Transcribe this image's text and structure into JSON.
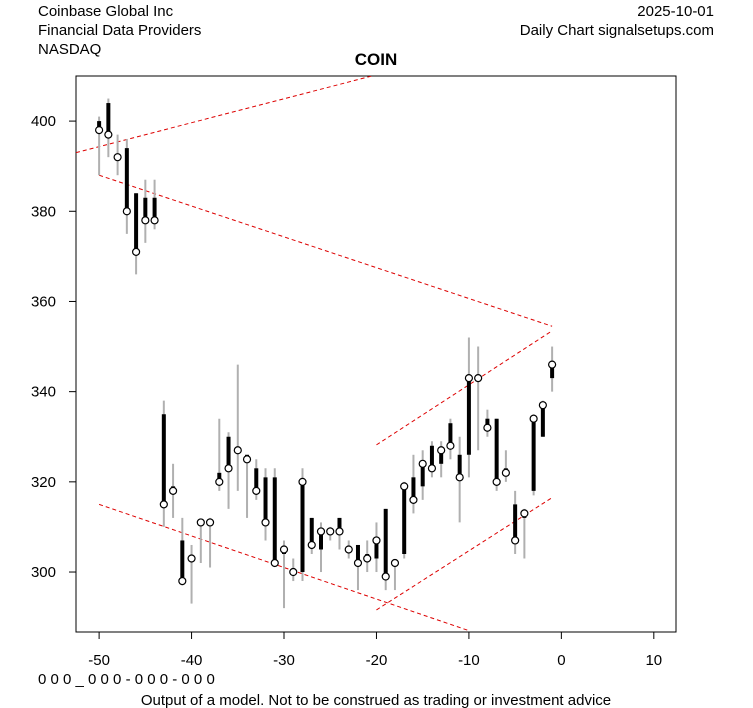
{
  "header": {
    "company": "Coinbase Global Inc",
    "sector": "Financial Data Providers",
    "exchange": "NASDAQ",
    "date": "2025-10-01",
    "source": "Daily Chart signalsetups.com"
  },
  "chart_data": {
    "type": "ohlc",
    "title": "COIN",
    "x": [
      -50,
      -49,
      -48,
      -47,
      -46,
      -45,
      -44,
      -43,
      -42,
      -41,
      -40,
      -39,
      -38,
      -37,
      -36,
      -35,
      -34,
      -33,
      -32,
      -31,
      -30,
      -29,
      -28,
      -27,
      -26,
      -25,
      -24,
      -23,
      -22,
      -21,
      -20,
      -19,
      -18,
      -17,
      -16,
      -15,
      -14,
      -13,
      -12,
      -11,
      -10,
      -9,
      -8,
      -7,
      -6,
      -5,
      -4,
      -3,
      -2,
      -1
    ],
    "open": [
      400,
      404,
      392,
      394,
      384,
      383,
      383,
      335,
      319,
      307,
      303,
      311,
      311,
      322,
      330,
      327,
      326,
      323,
      321,
      321,
      304,
      300,
      300,
      312,
      305,
      309,
      312,
      305,
      306,
      304,
      303,
      314,
      302,
      304,
      321,
      319,
      328,
      324,
      333,
      326,
      326,
      343,
      334,
      334,
      323,
      315,
      312,
      318,
      330,
      343
    ],
    "high": [
      401,
      405,
      397,
      396,
      384,
      387,
      387,
      338,
      324,
      312,
      306,
      311,
      312,
      334,
      331,
      346,
      326,
      325,
      323,
      323,
      307,
      303,
      323,
      312,
      311,
      310,
      312,
      307,
      306,
      307,
      311,
      314,
      302,
      320,
      326,
      327,
      329,
      329,
      334,
      330,
      352,
      350,
      336,
      334,
      327,
      318,
      314,
      335,
      338,
      350
    ],
    "low": [
      388,
      392,
      388,
      375,
      366,
      373,
      376,
      310,
      312,
      297,
      293,
      302,
      301,
      318,
      314,
      318,
      312,
      316,
      307,
      302,
      292,
      298,
      298,
      304,
      300,
      307,
      305,
      303,
      296,
      300,
      300,
      296,
      296,
      303,
      313,
      316,
      321,
      321,
      325,
      311,
      321,
      327,
      330,
      318,
      320,
      304,
      303,
      317,
      330,
      340
    ],
    "close": [
      398,
      397,
      392,
      380,
      371,
      378,
      378,
      315,
      318,
      298,
      303,
      311,
      311,
      320,
      323,
      327,
      325,
      318,
      311,
      302,
      305,
      300,
      320,
      306,
      309,
      309,
      309,
      305,
      302,
      303,
      307,
      299,
      302,
      319,
      316,
      324,
      323,
      327,
      328,
      321,
      343,
      343,
      332,
      320,
      322,
      307,
      313,
      334,
      337,
      346
    ],
    "range_color": "#b0b0b0",
    "body_color": "#000000",
    "trend_lines": [
      {
        "x": [
          -52.5,
          -20.5
        ],
        "y": [
          393,
          410
        ]
      },
      {
        "x": [
          -50,
          -1
        ],
        "y": [
          388,
          354.5
        ]
      },
      {
        "x": [
          -50,
          -10
        ],
        "y": [
          315,
          287
        ]
      },
      {
        "x": [
          -20,
          -1
        ],
        "y": [
          291.6,
          316.5
        ]
      },
      {
        "x": [
          -20,
          -1
        ],
        "y": [
          328.2,
          353.5
        ]
      }
    ],
    "trend_color": "#dd0000",
    "xlim": [
      -52.5,
      12.4
    ],
    "ylim": [
      286.7,
      410
    ],
    "xticks": [
      -50,
      -40,
      -30,
      -20,
      -10,
      0,
      10
    ],
    "yticks": [
      300,
      320,
      340,
      360,
      380,
      400
    ],
    "grid": false,
    "code": "0 0 0 _ 0 0 0 - 0 0 0 - 0 0 0",
    "disclaimer": "Output of a model. Not to be construed as trading or investment advice"
  }
}
